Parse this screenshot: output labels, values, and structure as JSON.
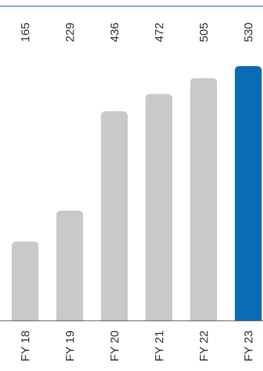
{
  "chart_data": {
    "type": "bar",
    "categories": [
      "FY 18",
      "FY 19",
      "FY 20",
      "FY 21",
      "FY 22",
      "FY 23"
    ],
    "values": [
      165,
      229,
      436,
      472,
      505,
      530
    ],
    "value_labels": [
      "165",
      "229",
      "436",
      "472",
      "505",
      "530"
    ],
    "title": "",
    "xlabel": "",
    "ylabel": "",
    "ylim": [
      0,
      530
    ],
    "grid": false,
    "legend": "none",
    "orientation": "vertical-bars-rotated-labels",
    "colors": {
      "bar": "#c8c9cb",
      "highlight_bar": "#0a6cb5",
      "top_rule": "#1a78c2",
      "baseline": "#444444",
      "text": "#2b2b2b"
    },
    "highlight_index": 5
  }
}
